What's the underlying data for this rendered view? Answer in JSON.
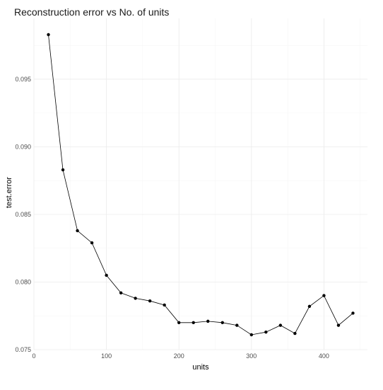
{
  "chart_data": {
    "type": "line",
    "title": "Reconstruction error vs No. of units",
    "xlabel": "units",
    "ylabel": "test.error",
    "xlim": [
      0,
      460
    ],
    "ylim": [
      0.075,
      0.0995
    ],
    "x_ticks": [
      0,
      100,
      200,
      300,
      400
    ],
    "y_ticks": [
      0.075,
      0.08,
      0.085,
      0.09,
      0.095
    ],
    "y_tick_labels": [
      "0.075",
      "0.080",
      "0.085",
      "0.090",
      "0.095"
    ],
    "x_tick_labels": [
      "0",
      "100",
      "200",
      "300",
      "400"
    ],
    "grid": true,
    "marker": "point",
    "series": [
      {
        "x": [
          20,
          40,
          60,
          80,
          100,
          120,
          140,
          160,
          180,
          200,
          220,
          240,
          260,
          280,
          300,
          320,
          340,
          360,
          380,
          400,
          420,
          440
        ],
        "values": [
          0.0983,
          0.0883,
          0.0838,
          0.0829,
          0.0805,
          0.0792,
          0.0788,
          0.0786,
          0.0783,
          0.077,
          0.077,
          0.0771,
          0.077,
          0.0768,
          0.0761,
          0.0763,
          0.0768,
          0.0762,
          0.0782,
          0.079,
          0.0768,
          0.0777
        ]
      }
    ],
    "colors": {
      "line": "#000000",
      "grid": "#ebebeb",
      "background": "#ffffff"
    }
  }
}
